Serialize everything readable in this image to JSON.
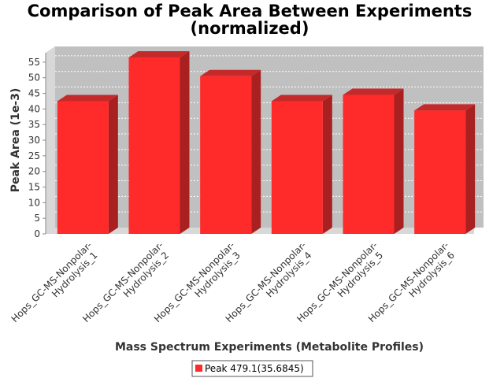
{
  "chart_data": {
    "type": "bar",
    "title": "Comparison of Peak Area Between Experiments",
    "subtitle": "(normalized)",
    "xlabel": "Mass Spectrum Experiments (Metabolite Profiles)",
    "ylabel": "Peak Area (1e-3)",
    "ylim": [
      0,
      58
    ],
    "yticks": [
      0,
      5,
      10,
      15,
      20,
      25,
      30,
      35,
      40,
      45,
      50,
      55
    ],
    "categories": [
      [
        "Hops_GC-MS-Nonpolar-",
        "Hydrolysis_1"
      ],
      [
        "Hops_GC-MS-Nonpolar-",
        "Hydrolysis_2"
      ],
      [
        "Hops_GC-MS-Nonpolar-",
        "Hydrolysis_3"
      ],
      [
        "Hops_GC-MS-Nonpolar-",
        "Hydrolysis_4"
      ],
      [
        "Hops_GC-MS-Nonpolar-",
        "Hydrolysis_5"
      ],
      [
        "Hops_GC-MS-Nonpolar-",
        "Hydrolysis_6"
      ]
    ],
    "series": [
      {
        "name": "Peak 479.1(35.6845)",
        "values": [
          42.5,
          56.5,
          50.5,
          42.5,
          44.5,
          39.5
        ]
      }
    ],
    "grid": true,
    "legend_position": "bottom"
  },
  "colors": {
    "bar_front": "#ff2a2a",
    "bar_top": "#c52a2a",
    "bar_side": "#a82020",
    "plot_bg": "#c0c0c0",
    "wall": "#d8d8d8"
  }
}
